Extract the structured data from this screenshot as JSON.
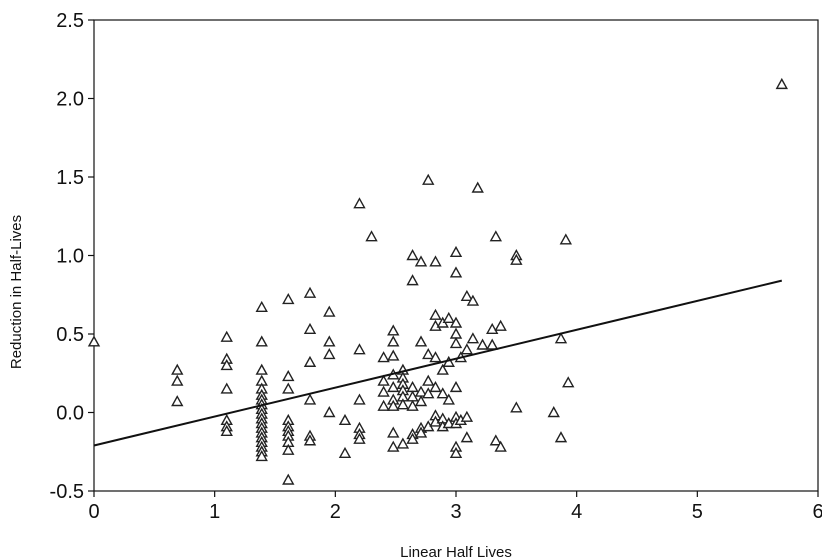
{
  "chart_data": {
    "type": "scatter",
    "xlabel": "Linear Half Lives",
    "ylabel": "Reduction in Half-Lives",
    "xlim": [
      0,
      6
    ],
    "ylim": [
      -0.5,
      2.5
    ],
    "xticks": [
      "0",
      "1",
      "2",
      "3",
      "4",
      "5",
      "6"
    ],
    "yticks": [
      "-0.5",
      "0.0",
      "0.5",
      "1.0",
      "1.5",
      "2.0",
      "2.5"
    ],
    "grid": false,
    "legend": "none",
    "marker": "triangle",
    "marker_color": "#222222",
    "fit_line": {
      "x": [
        0,
        5.7
      ],
      "y": [
        -0.21,
        0.84
      ]
    },
    "series": [
      {
        "points": [
          [
            0.0,
            0.45
          ],
          [
            0.69,
            0.27
          ],
          [
            0.69,
            0.2
          ],
          [
            0.69,
            0.07
          ],
          [
            1.1,
            0.48
          ],
          [
            1.1,
            0.34
          ],
          [
            1.1,
            0.3
          ],
          [
            1.1,
            0.15
          ],
          [
            1.1,
            -0.05
          ],
          [
            1.1,
            -0.09
          ],
          [
            1.1,
            -0.12
          ],
          [
            1.39,
            0.67
          ],
          [
            1.39,
            0.45
          ],
          [
            1.39,
            0.27
          ],
          [
            1.39,
            0.2
          ],
          [
            1.39,
            0.15
          ],
          [
            1.39,
            0.11
          ],
          [
            1.39,
            0.08
          ],
          [
            1.39,
            0.05
          ],
          [
            1.39,
            0.02
          ],
          [
            1.39,
            -0.01
          ],
          [
            1.39,
            -0.04
          ],
          [
            1.39,
            -0.07
          ],
          [
            1.39,
            -0.1
          ],
          [
            1.39,
            -0.13
          ],
          [
            1.39,
            -0.16
          ],
          [
            1.39,
            -0.19
          ],
          [
            1.39,
            -0.22
          ],
          [
            1.39,
            -0.25
          ],
          [
            1.39,
            -0.28
          ],
          [
            1.61,
            0.72
          ],
          [
            1.61,
            0.23
          ],
          [
            1.61,
            0.15
          ],
          [
            1.61,
            -0.05
          ],
          [
            1.61,
            -0.09
          ],
          [
            1.61,
            -0.12
          ],
          [
            1.61,
            -0.15
          ],
          [
            1.61,
            -0.19
          ],
          [
            1.61,
            -0.24
          ],
          [
            1.61,
            -0.43
          ],
          [
            1.79,
            0.76
          ],
          [
            1.79,
            0.53
          ],
          [
            1.79,
            0.32
          ],
          [
            1.79,
            0.08
          ],
          [
            1.79,
            -0.15
          ],
          [
            1.79,
            -0.18
          ],
          [
            1.95,
            0.64
          ],
          [
            1.95,
            0.45
          ],
          [
            1.95,
            0.37
          ],
          [
            1.95,
            0.0
          ],
          [
            2.08,
            -0.26
          ],
          [
            2.08,
            -0.05
          ],
          [
            2.2,
            1.33
          ],
          [
            2.2,
            0.4
          ],
          [
            2.2,
            0.08
          ],
          [
            2.2,
            -0.1
          ],
          [
            2.2,
            -0.14
          ],
          [
            2.2,
            -0.17
          ],
          [
            2.3,
            1.12
          ],
          [
            2.4,
            0.35
          ],
          [
            2.4,
            0.2
          ],
          [
            2.4,
            0.13
          ],
          [
            2.4,
            0.04
          ],
          [
            2.48,
            0.52
          ],
          [
            2.48,
            0.45
          ],
          [
            2.48,
            0.36
          ],
          [
            2.48,
            0.24
          ],
          [
            2.48,
            0.16
          ],
          [
            2.48,
            0.08
          ],
          [
            2.48,
            0.04
          ],
          [
            2.48,
            -0.13
          ],
          [
            2.48,
            -0.22
          ],
          [
            2.56,
            0.27
          ],
          [
            2.56,
            0.22
          ],
          [
            2.56,
            0.18
          ],
          [
            2.56,
            0.14
          ],
          [
            2.56,
            0.1
          ],
          [
            2.56,
            0.05
          ],
          [
            2.56,
            -0.2
          ],
          [
            2.64,
            1.0
          ],
          [
            2.64,
            0.84
          ],
          [
            2.64,
            0.16
          ],
          [
            2.64,
            0.1
          ],
          [
            2.64,
            0.04
          ],
          [
            2.64,
            -0.14
          ],
          [
            2.64,
            -0.17
          ],
          [
            2.71,
            0.96
          ],
          [
            2.71,
            0.45
          ],
          [
            2.71,
            0.13
          ],
          [
            2.71,
            0.07
          ],
          [
            2.71,
            -0.1
          ],
          [
            2.71,
            -0.13
          ],
          [
            2.77,
            1.48
          ],
          [
            2.77,
            0.37
          ],
          [
            2.77,
            0.2
          ],
          [
            2.77,
            0.12
          ],
          [
            2.77,
            -0.09
          ],
          [
            2.83,
            0.96
          ],
          [
            2.83,
            0.62
          ],
          [
            2.83,
            0.55
          ],
          [
            2.83,
            0.35
          ],
          [
            2.83,
            0.16
          ],
          [
            2.83,
            -0.02
          ],
          [
            2.83,
            -0.06
          ],
          [
            2.89,
            0.57
          ],
          [
            2.89,
            0.27
          ],
          [
            2.89,
            0.12
          ],
          [
            2.89,
            -0.04
          ],
          [
            2.89,
            -0.09
          ],
          [
            2.94,
            0.6
          ],
          [
            2.94,
            0.32
          ],
          [
            2.94,
            0.08
          ],
          [
            2.94,
            -0.07
          ],
          [
            3.0,
            1.02
          ],
          [
            3.0,
            0.89
          ],
          [
            3.0,
            0.57
          ],
          [
            3.0,
            0.5
          ],
          [
            3.0,
            0.44
          ],
          [
            3.0,
            0.16
          ],
          [
            3.0,
            -0.03
          ],
          [
            3.0,
            -0.07
          ],
          [
            3.0,
            -0.22
          ],
          [
            3.0,
            -0.26
          ],
          [
            3.04,
            0.35
          ],
          [
            3.04,
            -0.05
          ],
          [
            3.09,
            0.74
          ],
          [
            3.09,
            0.4
          ],
          [
            3.09,
            -0.03
          ],
          [
            3.09,
            -0.16
          ],
          [
            3.14,
            0.71
          ],
          [
            3.14,
            0.47
          ],
          [
            3.18,
            1.43
          ],
          [
            3.22,
            0.43
          ],
          [
            3.3,
            0.53
          ],
          [
            3.3,
            0.43
          ],
          [
            3.33,
            1.12
          ],
          [
            3.33,
            -0.18
          ],
          [
            3.37,
            0.55
          ],
          [
            3.37,
            -0.22
          ],
          [
            3.5,
            1.0
          ],
          [
            3.5,
            0.97
          ],
          [
            3.5,
            0.03
          ],
          [
            3.81,
            0.0
          ],
          [
            3.87,
            0.47
          ],
          [
            3.87,
            -0.16
          ],
          [
            3.91,
            1.1
          ],
          [
            3.93,
            0.19
          ],
          [
            5.7,
            2.09
          ]
        ]
      }
    ]
  }
}
